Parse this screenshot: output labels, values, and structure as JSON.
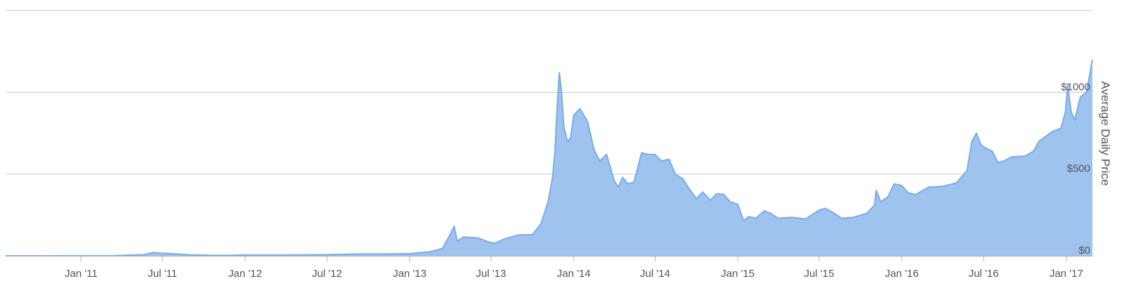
{
  "chart_data": {
    "type": "area",
    "title": "",
    "xlabel": "",
    "ylabel": "Average Daily Price",
    "y_axis_side": "right",
    "grid": true,
    "legend": "none",
    "colors": {
      "fill": "#9DC3EE",
      "stroke": "#7BADE6",
      "grid": "#C8C8C8",
      "axis": "#B0B0B0"
    },
    "ylim": [
      0,
      1500
    ],
    "xlim": [
      "2010-07-17",
      "2017-02-28"
    ],
    "y_ticks": [
      {
        "value": 0,
        "label": "$0"
      },
      {
        "value": 500,
        "label": "$500"
      },
      {
        "value": 1000,
        "label": "$1000"
      }
    ],
    "x_ticks": [
      {
        "date": "2011-01-01",
        "label": "Jan '11"
      },
      {
        "date": "2011-07-01",
        "label": "Jul '11"
      },
      {
        "date": "2012-01-01",
        "label": "Jan '12"
      },
      {
        "date": "2012-07-01",
        "label": "Jul '12"
      },
      {
        "date": "2013-01-01",
        "label": "Jan '13"
      },
      {
        "date": "2013-07-01",
        "label": "Jul '13"
      },
      {
        "date": "2014-01-01",
        "label": "Jan '14"
      },
      {
        "date": "2014-07-01",
        "label": "Jul '14"
      },
      {
        "date": "2015-01-01",
        "label": "Jan '15"
      },
      {
        "date": "2015-07-01",
        "label": "Jul '15"
      },
      {
        "date": "2016-01-01",
        "label": "Jan '16"
      },
      {
        "date": "2016-07-01",
        "label": "Jul '16"
      },
      {
        "date": "2017-01-01",
        "label": "Jan '17"
      }
    ],
    "series": [
      {
        "x": [
          "2010-07-17",
          "2010-10-01",
          "2011-01-01",
          "2011-03-15",
          "2011-05-20",
          "2011-06-10",
          "2011-06-25",
          "2011-07-15",
          "2011-09-01",
          "2011-10-15",
          "2011-12-01",
          "2012-01-01",
          "2012-04-01",
          "2012-07-01",
          "2012-09-01",
          "2012-11-01",
          "2013-01-01",
          "2013-02-15",
          "2013-03-15",
          "2013-04-01",
          "2013-04-10",
          "2013-04-17",
          "2013-05-01",
          "2013-06-01",
          "2013-07-01",
          "2013-07-10",
          "2013-08-01",
          "2013-09-01",
          "2013-10-01",
          "2013-10-20",
          "2013-11-05",
          "2013-11-15",
          "2013-11-20",
          "2013-11-25",
          "2013-11-30",
          "2013-12-05",
          "2013-12-10",
          "2013-12-18",
          "2013-12-25",
          "2014-01-01",
          "2014-01-15",
          "2014-02-01",
          "2014-02-15",
          "2014-02-28",
          "2014-03-15",
          "2014-04-01",
          "2014-04-10",
          "2014-04-20",
          "2014-05-01",
          "2014-05-15",
          "2014-06-01",
          "2014-06-15",
          "2014-07-01",
          "2014-07-15",
          "2014-08-01",
          "2014-08-15",
          "2014-09-01",
          "2014-09-15",
          "2014-10-01",
          "2014-10-15",
          "2014-11-01",
          "2014-11-15",
          "2014-12-01",
          "2014-12-15",
          "2015-01-01",
          "2015-01-14",
          "2015-01-25",
          "2015-02-10",
          "2015-03-01",
          "2015-03-15",
          "2015-04-01",
          "2015-05-01",
          "2015-06-01",
          "2015-07-01",
          "2015-07-15",
          "2015-08-01",
          "2015-08-20",
          "2015-09-15",
          "2015-10-15",
          "2015-11-01",
          "2015-11-05",
          "2015-11-15",
          "2015-12-01",
          "2015-12-15",
          "2016-01-01",
          "2016-01-15",
          "2016-02-01",
          "2016-03-01",
          "2016-04-01",
          "2016-05-01",
          "2016-05-25",
          "2016-06-05",
          "2016-06-15",
          "2016-06-25",
          "2016-07-05",
          "2016-07-20",
          "2016-08-02",
          "2016-08-15",
          "2016-09-01",
          "2016-10-01",
          "2016-10-20",
          "2016-11-01",
          "2016-12-01",
          "2016-12-20",
          "2016-12-30",
          "2017-01-04",
          "2017-01-08",
          "2017-01-12",
          "2017-01-20",
          "2017-02-01",
          "2017-02-15",
          "2017-02-28"
        ],
        "values": [
          0.06,
          0.1,
          0.3,
          0.9,
          7,
          20,
          16,
          14,
          6,
          3.5,
          3,
          5.3,
          5,
          7,
          11,
          11,
          13.5,
          25,
          45,
          130,
          180,
          90,
          115,
          110,
          80,
          78,
          105,
          128,
          130,
          195,
          330,
          480,
          630,
          900,
          1120,
          1000,
          790,
          700,
          720,
          860,
          900,
          820,
          650,
          580,
          620,
          460,
          420,
          480,
          440,
          450,
          630,
          620,
          620,
          580,
          590,
          500,
          470,
          410,
          350,
          390,
          340,
          380,
          375,
          330,
          315,
          215,
          240,
          230,
          275,
          260,
          230,
          235,
          225,
          280,
          290,
          265,
          230,
          235,
          260,
          310,
          400,
          330,
          360,
          440,
          430,
          385,
          375,
          420,
          425,
          445,
          520,
          700,
          750,
          680,
          660,
          640,
          570,
          580,
          605,
          610,
          640,
          700,
          760,
          780,
          880,
          1050,
          960,
          880,
          830,
          970,
          1000,
          1200
        ]
      }
    ]
  }
}
